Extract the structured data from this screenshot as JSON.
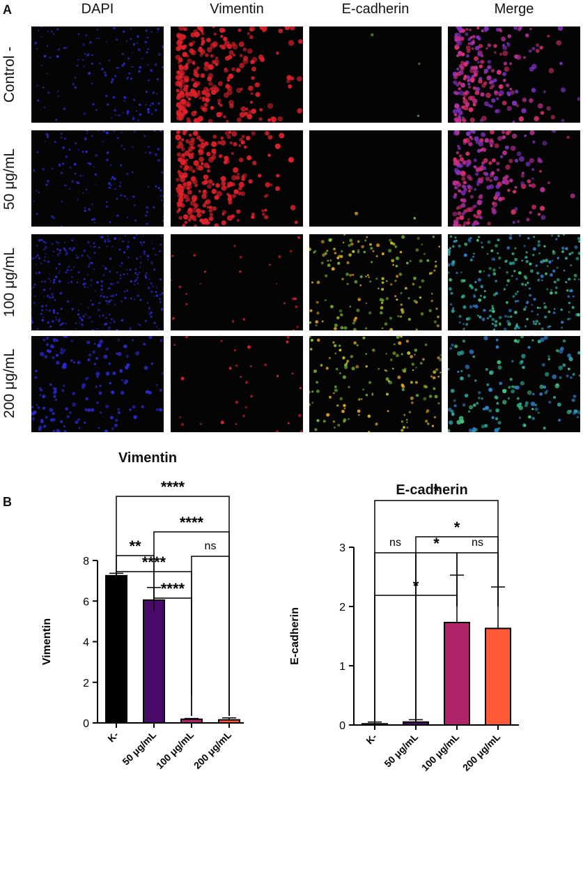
{
  "panel_a": {
    "label": "A",
    "columns": [
      "DAPI",
      "Vimentin",
      "E-cadherin",
      "Merge"
    ],
    "rows": [
      "Control -",
      "50 μg/mL",
      "100 μg/mL",
      "200 μg/mL"
    ],
    "channel_colors": {
      "DAPI": "#2a2ad8",
      "Vimentin": "#e0202a",
      "E-cadherin": "#7ab82a",
      "Merge": "#c0309a"
    }
  },
  "panel_b": {
    "label": "B",
    "bar_colors": [
      "#000000",
      "#4a0a6a",
      "#b0246a",
      "#ff5a36"
    ]
  },
  "chart_data": [
    {
      "type": "bar",
      "title": "Vimentin",
      "ylabel": "Vimentin",
      "categories": [
        "K-",
        "50 μg/mL",
        "100 μg/mL",
        "200 μg/mL"
      ],
      "values": [
        7.25,
        6.05,
        0.18,
        0.15
      ],
      "errors": [
        0.12,
        0.62,
        0.04,
        0.1
      ],
      "ylim": [
        0,
        8
      ],
      "yticks": [
        "0",
        "2",
        "4",
        "6",
        "8"
      ],
      "comparisons": [
        {
          "from": 1,
          "to": 2,
          "label": "**"
        },
        {
          "from": 3,
          "to": 4,
          "label": "ns"
        },
        {
          "from": 2,
          "to": 3,
          "label": "****"
        },
        {
          "from": 1,
          "to": 3,
          "label": "****"
        },
        {
          "from": 2,
          "to": 4,
          "label": "****"
        },
        {
          "from": 1,
          "to": 4,
          "label": "****"
        }
      ]
    },
    {
      "type": "bar",
      "title": "E-cadherin",
      "ylabel": "E-cadherin",
      "categories": [
        "K-",
        "50 μg/mL",
        "100 μg/mL",
        "200 μg/mL"
      ],
      "values": [
        0.02,
        0.05,
        1.73,
        1.63
      ],
      "errors": [
        0.03,
        0.04,
        0.8,
        0.7
      ],
      "ylim": [
        0,
        3
      ],
      "yticks": [
        "0",
        "1",
        "2",
        "3"
      ],
      "comparisons": [
        {
          "from": 1,
          "to": 2,
          "label": "ns"
        },
        {
          "from": 2,
          "to": 3,
          "label": "*"
        },
        {
          "from": 3,
          "to": 4,
          "label": "ns"
        },
        {
          "from": 1,
          "to": 3,
          "label": "*"
        },
        {
          "from": 2,
          "to": 4,
          "label": "*"
        },
        {
          "from": 1,
          "to": 4,
          "label": "*"
        }
      ]
    }
  ]
}
